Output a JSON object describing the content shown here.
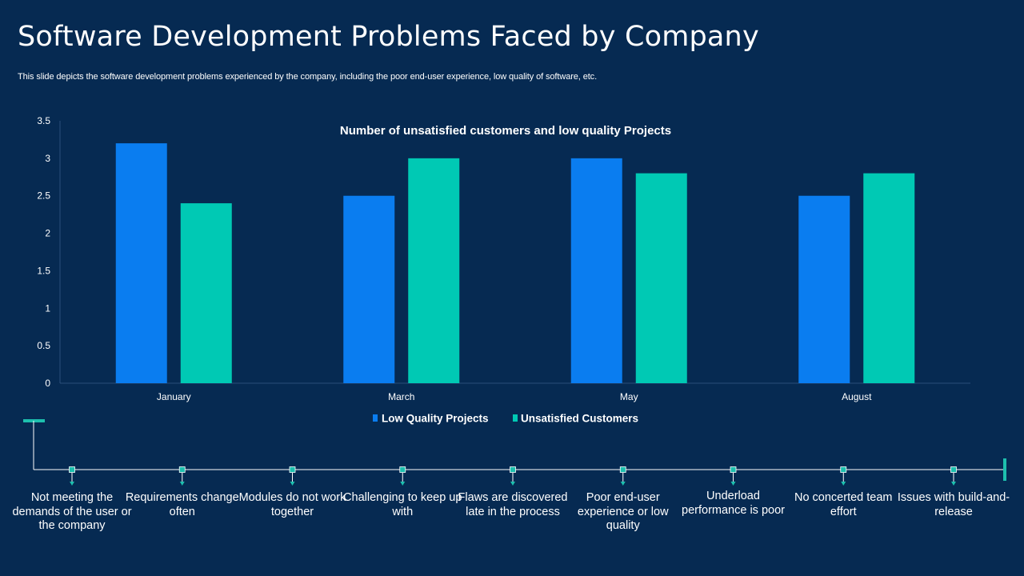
{
  "slide": {
    "title": "Software Development Problems Faced by Company",
    "subtitle": "This slide depicts the software development problems experienced by the company, including the poor end-user experience, low quality of software, etc."
  },
  "colors": {
    "background": "#062a52",
    "low_quality": "#0a7df0",
    "unsatisfied": "#00c9b4",
    "timeline_accent": "#1dbfae"
  },
  "chart_data": {
    "type": "bar",
    "title": "Number of unsatisfied customers and low quality Projects",
    "categories": [
      "January",
      "March",
      "May",
      "August"
    ],
    "series": [
      {
        "name": "Low Quality Projects",
        "values": [
          3.2,
          2.5,
          3.0,
          2.5
        ]
      },
      {
        "name": "Unsatisfied Customers",
        "values": [
          2.4,
          3.0,
          2.8,
          2.8
        ]
      }
    ],
    "yticks": [
      "0",
      "0.5",
      "1",
      "1.5",
      "2",
      "2.5",
      "3",
      "3.5"
    ],
    "ylim": [
      0,
      3.5
    ],
    "xlabel": "",
    "ylabel": "",
    "grid": false,
    "legend_position": "bottom"
  },
  "timeline": {
    "items": [
      {
        "label": "Not meeting the demands of the user or the company"
      },
      {
        "label": "Requirements change often"
      },
      {
        "label": "Modules do not work together"
      },
      {
        "label": "Challenging to keep up with"
      },
      {
        "label": "Flaws are discovered late in the process"
      },
      {
        "label": "Poor end-user experience or low quality"
      },
      {
        "label": "Underload performance is poor"
      },
      {
        "label": "No concerted team effort"
      },
      {
        "label": "Issues with build-and-release"
      }
    ]
  }
}
